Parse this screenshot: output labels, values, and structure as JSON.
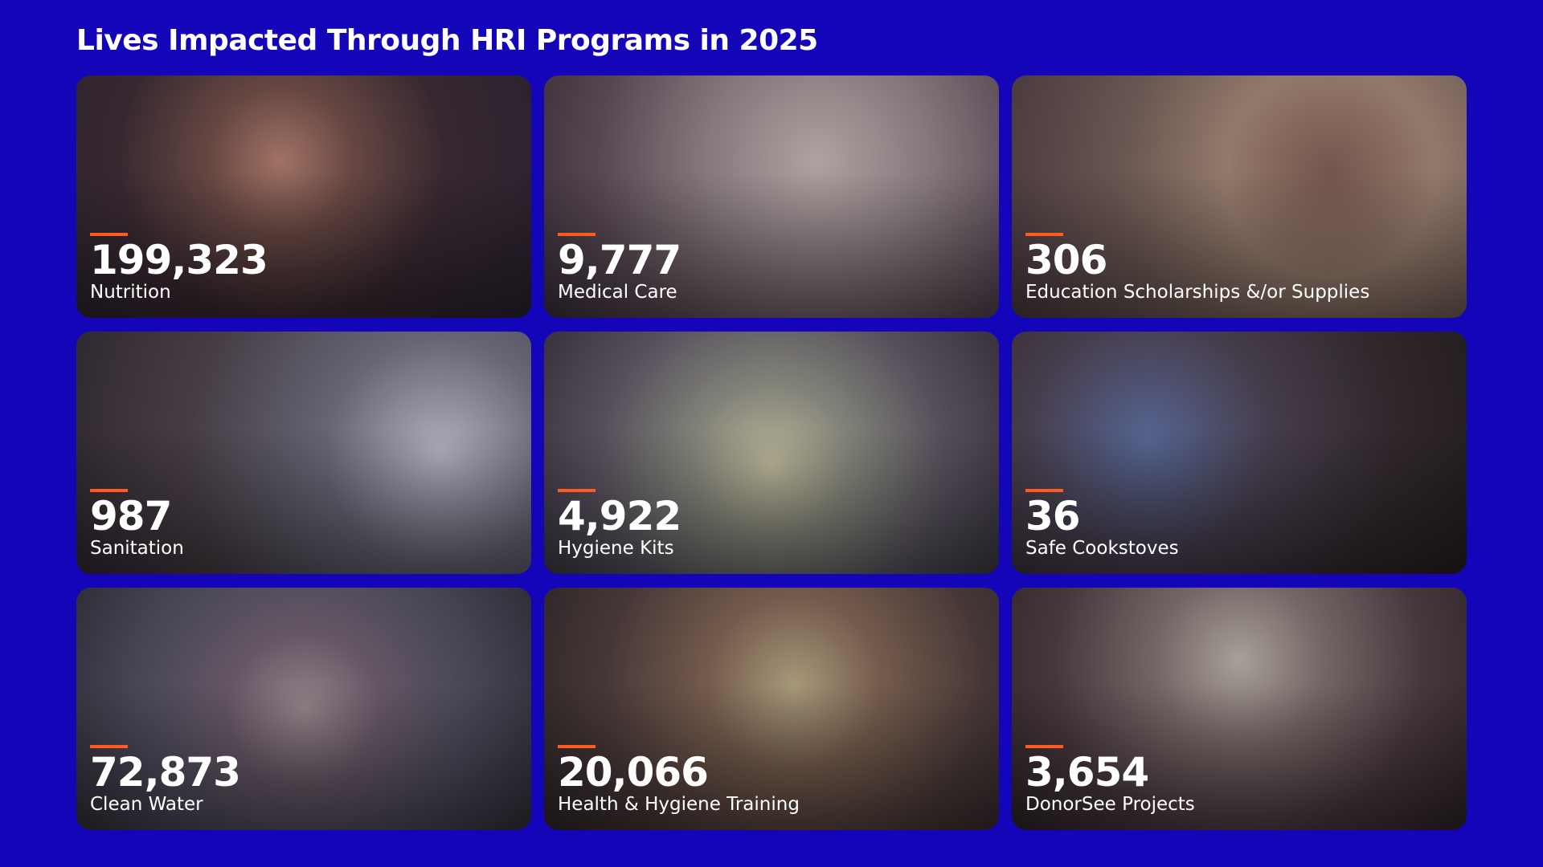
{
  "header": {
    "title": "Lives Impacted Through HRI Programs in 2025"
  },
  "tiles": [
    {
      "number": "199,323",
      "label": "Nutrition"
    },
    {
      "number": "9,777",
      "label": "Medical Care"
    },
    {
      "number": "306",
      "label": "Education Scholarships &/or Supplies"
    },
    {
      "number": "987",
      "label": "Sanitation"
    },
    {
      "number": "4,922",
      "label": "Hygiene Kits"
    },
    {
      "number": "36",
      "label": "Safe Cookstoves"
    },
    {
      "number": "72,873",
      "label": "Clean Water"
    },
    {
      "number": "20,066",
      "label": "Health & Hygiene Training"
    },
    {
      "number": "3,654",
      "label": "DonorSee Projects"
    }
  ]
}
